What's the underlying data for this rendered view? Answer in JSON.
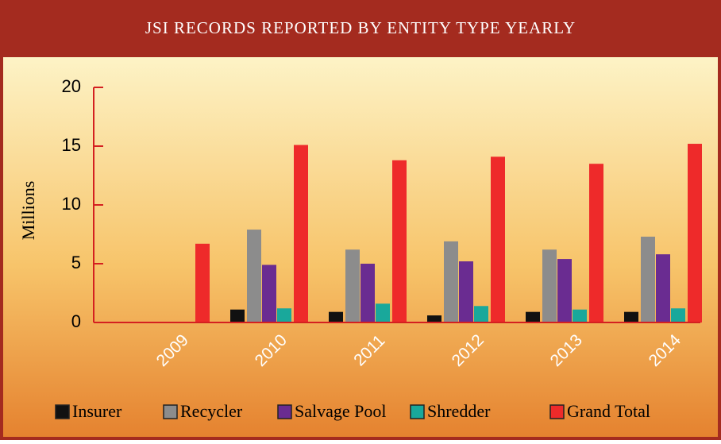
{
  "chart_data": {
    "type": "bar",
    "title": "JSI RECORDS REPORTED BY ENTITY TYPE YEARLY",
    "y_label": "Millions",
    "categories": [
      "2009",
      "2010",
      "2011",
      "2012",
      "2013",
      "2014"
    ],
    "series": [
      {
        "name": "Insurer",
        "color": "#111111",
        "values": [
          0,
          1.1,
          0.9,
          0.6,
          0.9,
          0.9
        ]
      },
      {
        "name": "Recycler",
        "color": "#8c8c8c",
        "values": [
          0,
          7.9,
          6.2,
          6.9,
          6.2,
          7.3
        ]
      },
      {
        "name": "Salvage Pool",
        "color": "#6a2c91",
        "values": [
          0,
          4.9,
          5.0,
          5.2,
          5.4,
          5.8
        ]
      },
      {
        "name": "Shredder",
        "color": "#19a89b",
        "values": [
          0,
          1.2,
          1.6,
          1.4,
          1.1,
          1.2
        ]
      },
      {
        "name": "Grand Total",
        "color": "#ee2a2a",
        "values": [
          6.7,
          15.1,
          13.8,
          14.1,
          13.5,
          15.2
        ]
      }
    ],
    "ylim": [
      0,
      20
    ],
    "yticks": [
      0,
      5,
      10,
      15,
      20
    ],
    "legend": "bottom"
  }
}
